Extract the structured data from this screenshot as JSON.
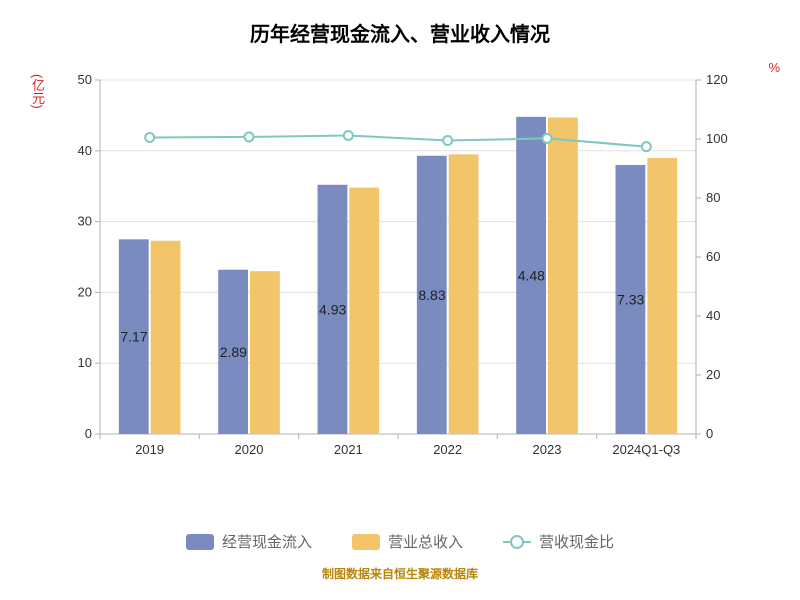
{
  "chart": {
    "title": "历年经营现金流入、营业收入情况",
    "title_fontsize": 20,
    "left_axis": {
      "label": "(亿元)",
      "min": 0,
      "max": 50,
      "step": 10,
      "ticks": [
        0,
        10,
        20,
        30,
        40,
        50
      ]
    },
    "right_axis": {
      "label": "%",
      "min": 0,
      "max": 120,
      "step": 20,
      "ticks": [
        0,
        20,
        40,
        60,
        80,
        100,
        120
      ]
    },
    "categories": [
      "2019",
      "2020",
      "2021",
      "2022",
      "2023",
      "2024Q1-Q3"
    ],
    "series": {
      "cash_inflow": {
        "name": "经营现金流入",
        "color": "#7a8bc0",
        "values": [
          27.5,
          23.2,
          35.2,
          39.3,
          44.8,
          38.0
        ],
        "label_prefix_digits": [
          "7.17",
          "2.89",
          "4.93",
          "8.83",
          "4.48",
          "7.33"
        ]
      },
      "revenue": {
        "name": "营业总收入",
        "color": "#f2c56b",
        "values": [
          27.3,
          23.0,
          34.8,
          39.5,
          44.7,
          39.0
        ]
      },
      "ratio": {
        "name": "营收现金比",
        "color": "#7ec8c0",
        "values_pct": [
          100.5,
          100.7,
          101.2,
          99.5,
          100.2,
          97.4
        ]
      }
    },
    "plot": {
      "background": "#ffffff",
      "grid_color": "#e0e0e0",
      "axis_color": "#b0b0b0",
      "bar_group_width": 0.62,
      "bar_gap": 0.02,
      "line_width": 2,
      "marker_radius": 4.5,
      "marker_fill": "#ffffff"
    },
    "legend": {
      "items": [
        "经营现金流入",
        "营业总收入",
        "营收现金比"
      ],
      "text_color": "#666666"
    },
    "footer": "制图数据来自恒生聚源数据库"
  }
}
